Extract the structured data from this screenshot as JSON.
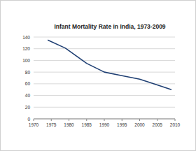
{
  "chart_data": {
    "type": "line",
    "title": "Infant Mortality Rate in India, 1973-2009",
    "x": [
      1974,
      1979,
      1985,
      1990,
      1995,
      2000,
      2005,
      2009
    ],
    "values": [
      135,
      121,
      95,
      80,
      74,
      68,
      58,
      50
    ],
    "color": "#1f3f73",
    "xlim": [
      1970,
      2010
    ],
    "xticks": [
      1970,
      1975,
      1980,
      1985,
      1990,
      1995,
      2000,
      2005,
      2010
    ],
    "ylim": [
      0,
      140
    ],
    "yticks": [
      0,
      20,
      40,
      60,
      80,
      100,
      120,
      140
    ],
    "grid": true
  }
}
